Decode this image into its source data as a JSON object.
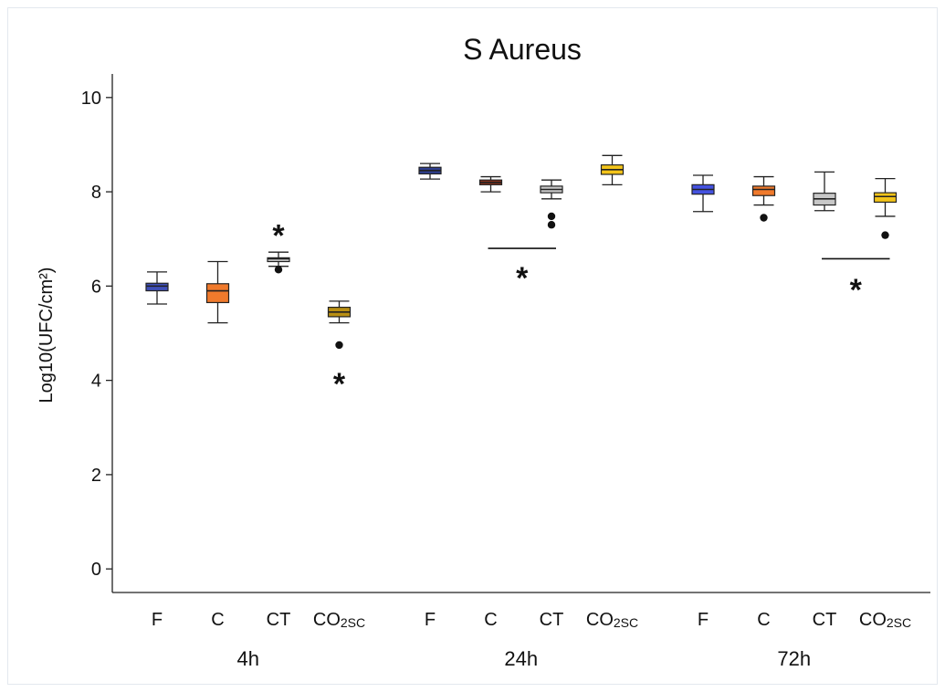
{
  "chart_data": {
    "type": "box",
    "title": "S Aureus",
    "ylabel": "Log10(UFC/cm²)",
    "ylim": [
      -0.5,
      10.5
    ],
    "yticks": [
      0,
      2,
      4,
      6,
      8,
      10
    ],
    "groups": [
      "4h",
      "24h",
      "72h"
    ],
    "categories": [
      {
        "label": "F",
        "sub": ""
      },
      {
        "label": "C",
        "sub": ""
      },
      {
        "label": "CT",
        "sub": ""
      },
      {
        "label": "CO",
        "sub": "2SC"
      }
    ],
    "colors": [
      "#3f4fb8",
      "#f07a2c",
      "#c8c8c8",
      "#e3b21c"
    ],
    "boxes": [
      {
        "group": "4h",
        "category": "F",
        "color": "#3f4fb8",
        "whisker_low": 5.62,
        "q1": 5.9,
        "median": 6.0,
        "q3": 6.06,
        "whisker_high": 6.3,
        "outliers": []
      },
      {
        "group": "4h",
        "category": "C",
        "color": "#f07a2c",
        "whisker_low": 5.22,
        "q1": 5.65,
        "median": 5.9,
        "q3": 6.05,
        "whisker_high": 6.52,
        "outliers": []
      },
      {
        "group": "4h",
        "category": "CT",
        "color": "#c8c8c8",
        "whisker_low": 6.42,
        "q1": 6.52,
        "median": 6.58,
        "q3": 6.6,
        "whisker_high": 6.72,
        "outliers": [
          6.35
        ]
      },
      {
        "group": "4h",
        "category": "CO2SC",
        "color": "#b98f12",
        "whisker_low": 5.22,
        "q1": 5.35,
        "median": 5.45,
        "q3": 5.55,
        "whisker_high": 5.68,
        "outliers": [
          4.75
        ]
      },
      {
        "group": "24h",
        "category": "F",
        "color": "#2e3e8e",
        "whisker_low": 8.27,
        "q1": 8.38,
        "median": 8.45,
        "q3": 8.52,
        "whisker_high": 8.6,
        "outliers": []
      },
      {
        "group": "24h",
        "category": "C",
        "color": "#8a2f18",
        "whisker_low": 8.0,
        "q1": 8.15,
        "median": 8.2,
        "q3": 8.25,
        "whisker_high": 8.32,
        "outliers": []
      },
      {
        "group": "24h",
        "category": "CT",
        "color": "#c8c8c8",
        "whisker_low": 7.85,
        "q1": 7.98,
        "median": 8.05,
        "q3": 8.12,
        "whisker_high": 8.25,
        "outliers": [
          7.48,
          7.3
        ]
      },
      {
        "group": "24h",
        "category": "CO2SC",
        "color": "#f3c419",
        "whisker_low": 8.15,
        "q1": 8.37,
        "median": 8.47,
        "q3": 8.57,
        "whisker_high": 8.77,
        "outliers": []
      },
      {
        "group": "72h",
        "category": "F",
        "color": "#4452e0",
        "whisker_low": 7.58,
        "q1": 7.95,
        "median": 8.05,
        "q3": 8.15,
        "whisker_high": 8.35,
        "outliers": []
      },
      {
        "group": "72h",
        "category": "C",
        "color": "#f07a2c",
        "whisker_low": 7.72,
        "q1": 7.92,
        "median": 8.05,
        "q3": 8.12,
        "whisker_high": 8.32,
        "outliers": [
          7.45
        ]
      },
      {
        "group": "72h",
        "category": "CT",
        "color": "#c8c8c8",
        "whisker_low": 7.6,
        "q1": 7.72,
        "median": 7.85,
        "q3": 7.97,
        "whisker_high": 8.42,
        "outliers": []
      },
      {
        "group": "72h",
        "category": "CO2SC",
        "color": "#f3c419",
        "whisker_low": 7.48,
        "q1": 7.78,
        "median": 7.9,
        "q3": 7.98,
        "whisker_high": 8.28,
        "outliers": [
          7.08
        ]
      }
    ],
    "significance": [
      {
        "label": "*",
        "box_index": 2,
        "y": 7.2,
        "bar": false
      },
      {
        "label": "*",
        "box_index": 3,
        "y": 4.05,
        "bar": false
      },
      {
        "label": "*",
        "group": "24h",
        "from_category": "C",
        "to_category": "CT",
        "bar_y": 6.8,
        "y": 6.3,
        "bar": true
      },
      {
        "label": "*",
        "group": "72h",
        "from_category": "CT",
        "to_category": "CO2SC",
        "bar_y": 6.58,
        "y": 6.05,
        "bar": true
      }
    ]
  }
}
